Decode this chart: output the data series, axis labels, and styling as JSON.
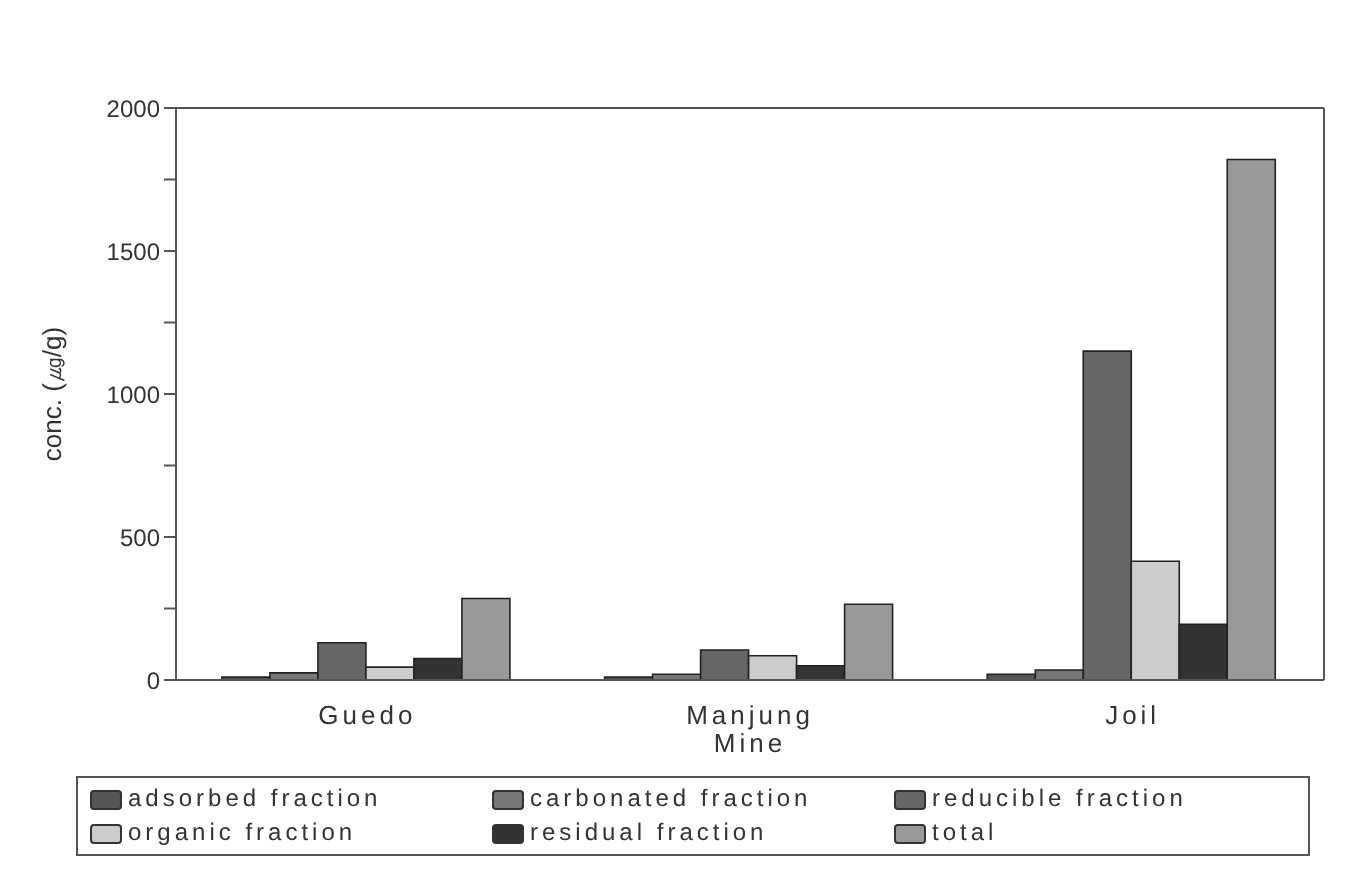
{
  "chart_data": {
    "type": "bar",
    "ylabel": "conc. (㎍/g)",
    "categories": [
      "Guedo",
      "Manjung Mine",
      "Joil"
    ],
    "series": [
      {
        "name": "adsorbed fraction",
        "color": "#555555",
        "values": [
          10,
          10,
          20
        ]
      },
      {
        "name": "carbonated fraction",
        "color": "#777777",
        "values": [
          25,
          20,
          35
        ]
      },
      {
        "name": "reducible fraction",
        "color": "#666666",
        "values": [
          130,
          105,
          1150
        ]
      },
      {
        "name": "organic fraction",
        "color": "#cccccc",
        "values": [
          45,
          85,
          415
        ]
      },
      {
        "name": "residual fraction",
        "color": "#333333",
        "values": [
          75,
          50,
          195
        ]
      },
      {
        "name": "total",
        "color": "#999999",
        "values": [
          285,
          265,
          1820
        ]
      }
    ],
    "ylim": [
      0,
      2000
    ],
    "yticks": [
      0,
      {
        "value": 250,
        "label": null
      },
      500,
      {
        "value": 750,
        "label": null
      },
      1000,
      {
        "value": 1250,
        "label": null
      },
      1500,
      {
        "value": 1750,
        "label": null
      },
      2000
    ],
    "legend": "bottom"
  }
}
